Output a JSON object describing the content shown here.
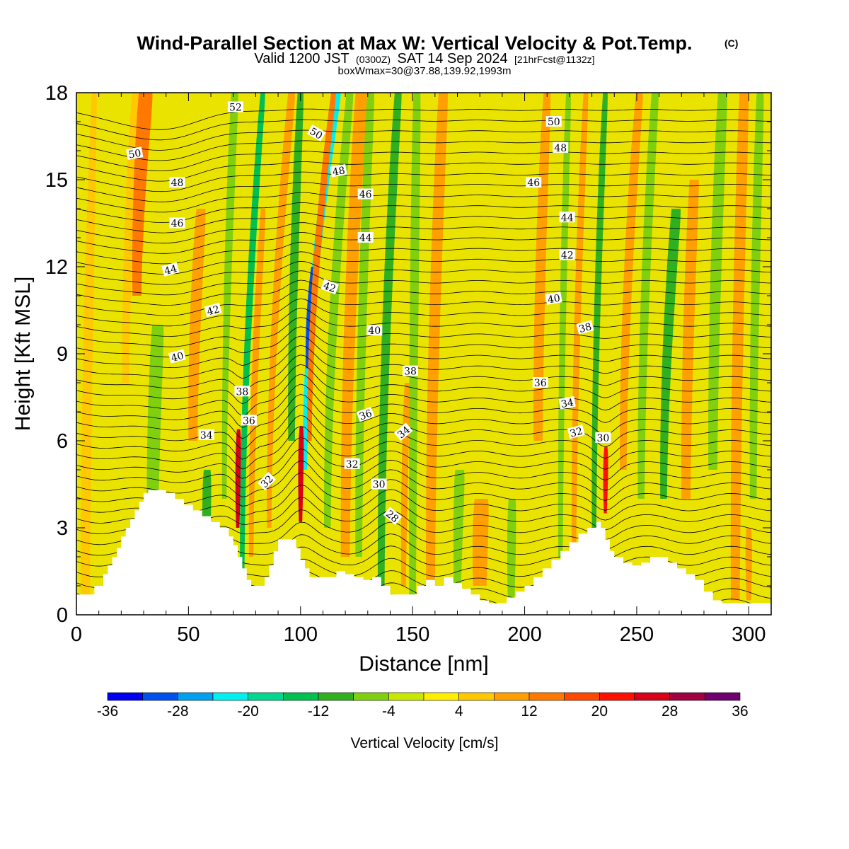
{
  "chart_data": {
    "type": "heatmap",
    "title": "Wind-Parallel Section at Max W: Vertical Velocity & Pot.Temp.",
    "title_mark": "(C)",
    "subtitle": {
      "prefix": "Valid 1200 JST",
      "utc": "(0300Z)",
      "date": "SAT 14 Sep 2024",
      "forecast": "[21hrFcst@1132z]"
    },
    "box_info": "boxWmax=30@37.88,139.92,1993m",
    "xlabel": "Distance [nm]",
    "ylabel": "Height [Kft MSL]",
    "xlim": [
      0,
      310
    ],
    "ylim": [
      0,
      18
    ],
    "x_ticks": [
      0,
      50,
      100,
      150,
      200,
      250,
      300
    ],
    "y_ticks": [
      0,
      3,
      6,
      9,
      12,
      15,
      18
    ],
    "colorbar": {
      "title": "Vertical Velocity [cm/s]",
      "tick_labels": [
        -36,
        -28,
        -20,
        -12,
        -4,
        4,
        12,
        20,
        28,
        36
      ],
      "colors": [
        "#0000f0",
        "#0050f0",
        "#00a0f0",
        "#00f0f0",
        "#00d890",
        "#00c050",
        "#30b020",
        "#80d010",
        "#c8e800",
        "#ffee00",
        "#ffc800",
        "#ffa000",
        "#ff7800",
        "#ff4800",
        "#ff1000",
        "#d80018",
        "#a00040",
        "#700070"
      ]
    },
    "terrain": [
      [
        0,
        0.7
      ],
      [
        4,
        0.7
      ],
      [
        8,
        1.0
      ],
      [
        10,
        1.0
      ],
      [
        12,
        1.4
      ],
      [
        14,
        1.7
      ],
      [
        16,
        2.0
      ],
      [
        18,
        2.3
      ],
      [
        20,
        2.7
      ],
      [
        22,
        3.0
      ],
      [
        24,
        3.3
      ],
      [
        26,
        3.6
      ],
      [
        28,
        3.9
      ],
      [
        30,
        4.2
      ],
      [
        32,
        4.3
      ],
      [
        36,
        4.3
      ],
      [
        40,
        4.2
      ],
      [
        44,
        4.0
      ],
      [
        48,
        3.8
      ],
      [
        52,
        3.6
      ],
      [
        56,
        3.4
      ],
      [
        60,
        3.2
      ],
      [
        64,
        3.0
      ],
      [
        68,
        2.7
      ],
      [
        70,
        2.4
      ],
      [
        72,
        2.0
      ],
      [
        74,
        1.6
      ],
      [
        76,
        1.2
      ],
      [
        78,
        1.0
      ],
      [
        82,
        1.0
      ],
      [
        84,
        1.3
      ],
      [
        86,
        1.7
      ],
      [
        88,
        2.2
      ],
      [
        90,
        2.6
      ],
      [
        96,
        2.6
      ],
      [
        98,
        2.3
      ],
      [
        100,
        1.9
      ],
      [
        102,
        1.6
      ],
      [
        104,
        1.3
      ],
      [
        108,
        1.3
      ],
      [
        112,
        1.3
      ],
      [
        116,
        1.5
      ],
      [
        120,
        1.4
      ],
      [
        124,
        1.3
      ],
      [
        128,
        1.2
      ],
      [
        132,
        1.3
      ],
      [
        136,
        1.0
      ],
      [
        140,
        0.7
      ],
      [
        148,
        0.7
      ],
      [
        152,
        1.0
      ],
      [
        156,
        1.2
      ],
      [
        160,
        1.0
      ],
      [
        164,
        1.3
      ],
      [
        168,
        1.1
      ],
      [
        172,
        0.9
      ],
      [
        176,
        0.7
      ],
      [
        180,
        0.5
      ],
      [
        184,
        0.4
      ],
      [
        188,
        0.4
      ],
      [
        192,
        0.6
      ],
      [
        196,
        0.8
      ],
      [
        200,
        1.0
      ],
      [
        204,
        1.3
      ],
      [
        208,
        1.6
      ],
      [
        212,
        1.9
      ],
      [
        216,
        2.2
      ],
      [
        220,
        2.5
      ],
      [
        224,
        2.8
      ],
      [
        228,
        3.0
      ],
      [
        232,
        3.2
      ],
      [
        234,
        3.0
      ],
      [
        236,
        2.6
      ],
      [
        238,
        2.2
      ],
      [
        240,
        2.0
      ],
      [
        244,
        1.8
      ],
      [
        248,
        1.7
      ],
      [
        252,
        1.8
      ],
      [
        256,
        2.0
      ],
      [
        260,
        2.0
      ],
      [
        264,
        1.8
      ],
      [
        268,
        1.6
      ],
      [
        272,
        1.4
      ],
      [
        276,
        1.2
      ],
      [
        280,
        0.8
      ],
      [
        284,
        0.5
      ],
      [
        288,
        0.4
      ],
      [
        310,
        0.4
      ]
    ],
    "vertical_velocity_bands": [
      {
        "x": 4,
        "w_top": 2,
        "w_bottom": 4,
        "tilt": 4,
        "value": 6,
        "ymin": 0,
        "ymax": 18
      },
      {
        "x": 22,
        "w_top": 3,
        "w_bottom": 3,
        "tilt": 8,
        "value": 6,
        "ymin": 8,
        "ymax": 18
      },
      {
        "x": 27,
        "w_top": 6,
        "w_bottom": 4,
        "tilt": 10,
        "value": 12,
        "ymin": 11,
        "ymax": 18
      },
      {
        "x": 34,
        "w_top": 5,
        "w_bottom": 5,
        "tilt": 6,
        "value": -8,
        "ymin": 3,
        "ymax": 10
      },
      {
        "x": 52,
        "w_top": 4,
        "w_bottom": 4,
        "tilt": 8,
        "value": 8,
        "ymin": 6,
        "ymax": 14
      },
      {
        "x": 58,
        "w_top": 3,
        "w_bottom": 3,
        "tilt": 2,
        "value": -10,
        "ymin": 2,
        "ymax": 5
      },
      {
        "x": 66,
        "w_top": 3,
        "w_bottom": 2,
        "tilt": 6,
        "value": -6,
        "ymin": 4,
        "ymax": 18
      },
      {
        "x": 72,
        "w_top": 1.5,
        "w_bottom": 1.5,
        "tilt": 2,
        "value": 24,
        "ymin": 3,
        "ymax": 6.4
      },
      {
        "x": 74,
        "w_top": 2,
        "w_bottom": 2,
        "tilt": 10,
        "value": -14,
        "ymin": 1.5,
        "ymax": 18
      },
      {
        "x": 78,
        "w_top": 2,
        "w_bottom": 2,
        "tilt": 8,
        "value": 10,
        "ymin": 2,
        "ymax": 14
      },
      {
        "x": 86,
        "w_top": 3,
        "w_bottom": 2,
        "tilt": 12,
        "value": 10,
        "ymin": 3,
        "ymax": 18
      },
      {
        "x": 96,
        "w_top": 2.5,
        "w_bottom": 3,
        "tilt": 6,
        "value": -10,
        "ymin": 6,
        "ymax": 18
      },
      {
        "x": 102,
        "w_top": 3,
        "w_bottom": 2,
        "tilt": 20,
        "value": -22,
        "ymin": 5,
        "ymax": 18
      },
      {
        "x": 103,
        "w_top": 1.2,
        "w_bottom": 1.2,
        "tilt": 12,
        "value": -30,
        "ymin": 8.5,
        "ymax": 12
      },
      {
        "x": 100,
        "w_top": 1.5,
        "w_bottom": 1.5,
        "tilt": 2,
        "value": 26,
        "ymin": 3.2,
        "ymax": 6.5
      },
      {
        "x": 104,
        "w_top": 2,
        "w_bottom": 2,
        "tilt": 16,
        "value": 14,
        "ymin": 6,
        "ymax": 18
      },
      {
        "x": 112,
        "w_top": 3,
        "w_bottom": 3,
        "tilt": 12,
        "value": -6,
        "ymin": 3,
        "ymax": 18
      },
      {
        "x": 120,
        "w_top": 5,
        "w_bottom": 4,
        "tilt": 8,
        "value": 10,
        "ymin": 2,
        "ymax": 18
      },
      {
        "x": 126,
        "w_top": 3,
        "w_bottom": 3,
        "tilt": 6,
        "value": -6,
        "ymin": 2,
        "ymax": 18
      },
      {
        "x": 136,
        "w_top": 3,
        "w_bottom": 3,
        "tilt": 8,
        "value": -10,
        "ymin": 1,
        "ymax": 18
      },
      {
        "x": 146,
        "w_top": 2,
        "w_bottom": 2,
        "tilt": 4,
        "value": 10,
        "ymin": 1,
        "ymax": 8
      },
      {
        "x": 150,
        "w_top": 3,
        "w_bottom": 3,
        "tilt": 2,
        "value": -8,
        "ymin": 0.5,
        "ymax": 18
      },
      {
        "x": 158,
        "w_top": 4,
        "w_bottom": 4,
        "tilt": 6,
        "value": 8,
        "ymin": 1,
        "ymax": 18
      },
      {
        "x": 170,
        "w_top": 4,
        "w_bottom": 3,
        "tilt": 4,
        "value": -6,
        "ymin": 0.5,
        "ymax": 5
      },
      {
        "x": 180,
        "w_top": 6,
        "w_bottom": 6,
        "tilt": 4,
        "value": 8,
        "ymin": 1,
        "ymax": 4
      },
      {
        "x": 194,
        "w_top": 3,
        "w_bottom": 3,
        "tilt": 2,
        "value": -8,
        "ymin": 0.5,
        "ymax": 4
      },
      {
        "x": 206,
        "w_top": 3,
        "w_bottom": 4,
        "tilt": 6,
        "value": 10,
        "ymin": 6,
        "ymax": 18
      },
      {
        "x": 216,
        "w_top": 2,
        "w_bottom": 2,
        "tilt": 4,
        "value": -6,
        "ymin": 2,
        "ymax": 18
      },
      {
        "x": 222,
        "w_top": 2,
        "w_bottom": 2,
        "tilt": 6,
        "value": 8,
        "ymin": 2,
        "ymax": 18
      },
      {
        "x": 231,
        "w_top": 2,
        "w_bottom": 2,
        "tilt": 6,
        "value": -10,
        "ymin": 3,
        "ymax": 18
      },
      {
        "x": 236,
        "w_top": 1.3,
        "w_bottom": 1.3,
        "tilt": 2,
        "value": 22,
        "ymin": 3.5,
        "ymax": 5.8
      },
      {
        "x": 244,
        "w_top": 3,
        "w_bottom": 3,
        "tilt": 10,
        "value": 10,
        "ymin": 5,
        "ymax": 18
      },
      {
        "x": 252,
        "w_top": 3,
        "w_bottom": 3,
        "tilt": 8,
        "value": -8,
        "ymin": 4,
        "ymax": 18
      },
      {
        "x": 262,
        "w_top": 4,
        "w_bottom": 3,
        "tilt": 10,
        "value": -12,
        "ymin": 4,
        "ymax": 14
      },
      {
        "x": 272,
        "w_top": 4,
        "w_bottom": 4,
        "tilt": 6,
        "value": 10,
        "ymin": 4,
        "ymax": 15
      },
      {
        "x": 284,
        "w_top": 4,
        "w_bottom": 4,
        "tilt": 6,
        "value": -6,
        "ymin": 5,
        "ymax": 18
      },
      {
        "x": 294,
        "w_top": 4,
        "w_bottom": 4,
        "tilt": 4,
        "value": 8,
        "ymin": 0.5,
        "ymax": 18
      },
      {
        "x": 302,
        "w_top": 3,
        "w_bottom": 3,
        "tilt": 4,
        "value": -6,
        "ymin": 4,
        "ymax": 18
      },
      {
        "x": 300,
        "w_top": 2,
        "w_bottom": 2,
        "tilt": 0,
        "value": 10,
        "ymin": 0.5,
        "ymax": 3
      }
    ],
    "theta_contours": {
      "min": 28,
      "max": 52,
      "interval": 0.5
    },
    "contour_labels": [
      {
        "text": "52",
        "x": 71,
        "y": 17.5,
        "angle": 0
      },
      {
        "text": "50",
        "x": 26,
        "y": 15.9,
        "angle": -10
      },
      {
        "text": "48",
        "x": 45,
        "y": 14.9,
        "angle": 0
      },
      {
        "text": "46",
        "x": 45,
        "y": 13.5,
        "angle": 0
      },
      {
        "text": "44",
        "x": 42,
        "y": 11.9,
        "angle": -15
      },
      {
        "text": "42",
        "x": 61,
        "y": 10.5,
        "angle": -15
      },
      {
        "text": "40",
        "x": 45,
        "y": 8.9,
        "angle": -15
      },
      {
        "text": "38",
        "x": 74,
        "y": 7.7,
        "angle": 0
      },
      {
        "text": "36",
        "x": 77,
        "y": 6.7,
        "angle": 0
      },
      {
        "text": "34",
        "x": 58,
        "y": 6.2,
        "angle": 0
      },
      {
        "text": "32",
        "x": 85,
        "y": 4.6,
        "angle": -45
      },
      {
        "text": "50",
        "x": 107,
        "y": 16.6,
        "angle": 30
      },
      {
        "text": "48",
        "x": 117,
        "y": 15.3,
        "angle": -10
      },
      {
        "text": "46",
        "x": 129,
        "y": 14.5,
        "angle": 0
      },
      {
        "text": "44",
        "x": 129,
        "y": 13.0,
        "angle": 0
      },
      {
        "text": "42",
        "x": 113,
        "y": 11.3,
        "angle": 20
      },
      {
        "text": "40",
        "x": 133,
        "y": 9.8,
        "angle": 0
      },
      {
        "text": "38",
        "x": 149,
        "y": 8.4,
        "angle": 0
      },
      {
        "text": "36",
        "x": 129,
        "y": 6.9,
        "angle": -20
      },
      {
        "text": "34",
        "x": 146,
        "y": 6.3,
        "angle": -40
      },
      {
        "text": "32",
        "x": 123,
        "y": 5.2,
        "angle": 0
      },
      {
        "text": "30",
        "x": 135,
        "y": 4.5,
        "angle": 0
      },
      {
        "text": "28",
        "x": 141,
        "y": 3.4,
        "angle": 40
      },
      {
        "text": "50",
        "x": 213,
        "y": 17.0,
        "angle": 0
      },
      {
        "text": "48",
        "x": 216,
        "y": 16.1,
        "angle": 0
      },
      {
        "text": "46",
        "x": 204,
        "y": 14.9,
        "angle": 0
      },
      {
        "text": "44",
        "x": 219,
        "y": 13.7,
        "angle": 0
      },
      {
        "text": "42",
        "x": 219,
        "y": 12.4,
        "angle": 0
      },
      {
        "text": "40",
        "x": 213,
        "y": 10.9,
        "angle": -10
      },
      {
        "text": "38",
        "x": 227,
        "y": 9.9,
        "angle": -15
      },
      {
        "text": "36",
        "x": 207,
        "y": 8.0,
        "angle": 0
      },
      {
        "text": "34",
        "x": 219,
        "y": 7.3,
        "angle": -10
      },
      {
        "text": "32",
        "x": 223,
        "y": 6.3,
        "angle": -15
      },
      {
        "text": "30",
        "x": 235,
        "y": 6.1,
        "angle": 0
      }
    ]
  }
}
